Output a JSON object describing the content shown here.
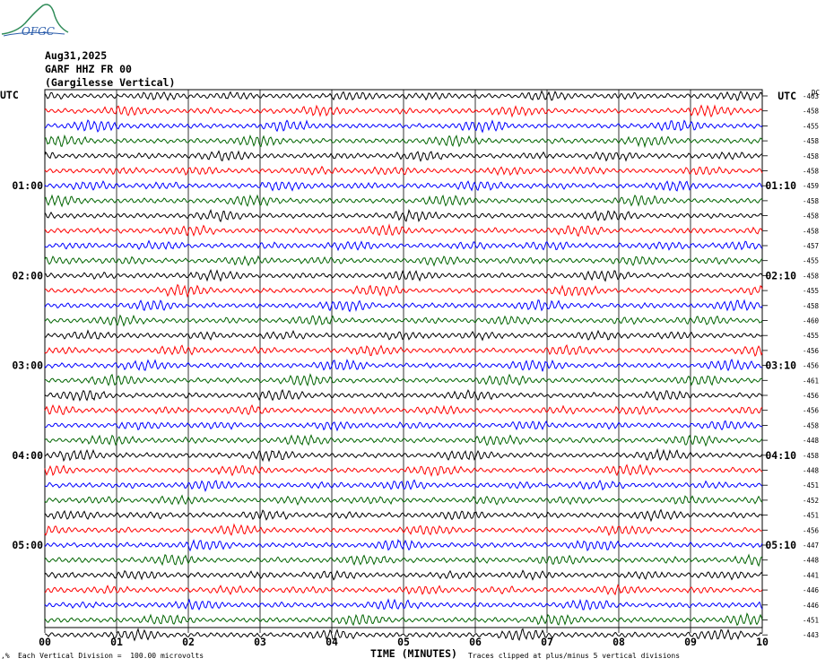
{
  "logo": {
    "text": "OFGC",
    "color": "#2e8b57",
    "text_color": "#2a5caa"
  },
  "header": {
    "date": "Aug31,2025",
    "station": "GARF HHZ FR 00",
    "location": "(Gargilesse Vertical)"
  },
  "left_label": "UTC",
  "right_label": "UTC",
  "dc_label": "DC",
  "footer": {
    "left": "Each Vertical Division =  100.00 microvolts",
    "right": "Traces clipped at plus/minus 5 vertical divisions"
  },
  "chart_data": {
    "type": "line",
    "title": "",
    "xlabel": "TIME (MINUTES)",
    "ylabel": "",
    "xlim": [
      0,
      10
    ],
    "x_ticks": [
      "00",
      "01",
      "02",
      "03",
      "04",
      "05",
      "06",
      "07",
      "08",
      "09",
      "10"
    ],
    "trace_colors": [
      "#000000",
      "#ff0000",
      "#0000ff",
      "#006400"
    ],
    "left_time_labels": [
      {
        "row": 6,
        "label": "01:00"
      },
      {
        "row": 12,
        "label": "02:00"
      },
      {
        "row": 18,
        "label": "03:00"
      },
      {
        "row": 24,
        "label": "04:00"
      },
      {
        "row": 30,
        "label": "05:00"
      }
    ],
    "right_time_labels": [
      {
        "row": 0,
        "label": "UTC"
      },
      {
        "row": 6,
        "label": "01:10"
      },
      {
        "row": 12,
        "label": "02:10"
      },
      {
        "row": 18,
        "label": "03:10"
      },
      {
        "row": 24,
        "label": "04:10"
      },
      {
        "row": 30,
        "label": "05:10"
      }
    ],
    "dc_offsets": [
      -463,
      -458,
      -455,
      -458,
      -458,
      -458,
      -459,
      -458,
      -458,
      -458,
      -457,
      -455,
      -458,
      -455,
      -458,
      -460,
      -455,
      -456,
      -456,
      -461,
      -456,
      -456,
      -458,
      -448,
      -458,
      -448,
      -451,
      -452,
      -451,
      -456,
      -447,
      -448,
      -441,
      -446,
      -446,
      -451,
      -443
    ]
  }
}
